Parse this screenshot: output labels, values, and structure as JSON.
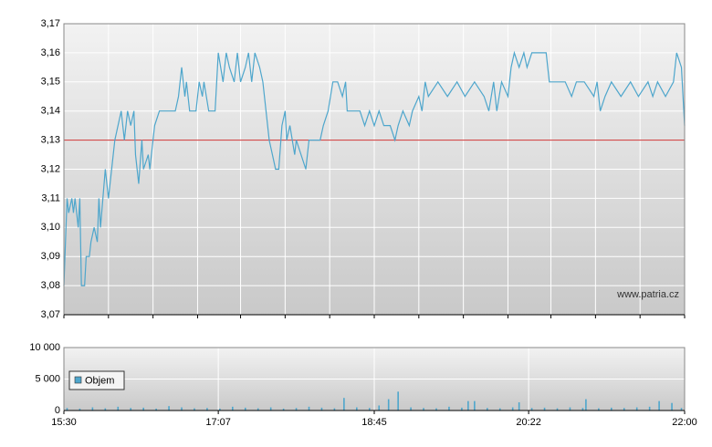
{
  "chart_data": [
    {
      "type": "line",
      "x": [
        930,
        932,
        933,
        935,
        936,
        937,
        939,
        940,
        941,
        943,
        944,
        946,
        947,
        949,
        951,
        952,
        953,
        956,
        958,
        960,
        962,
        964,
        966,
        967,
        968,
        970,
        972,
        974,
        975,
        977,
        979,
        980,
        983,
        984,
        986,
        987,
        990,
        993,
        997,
        1000,
        1002,
        1004,
        1006,
        1007,
        1009,
        1013,
        1015,
        1017,
        1018,
        1021,
        1025,
        1027,
        1030,
        1032,
        1034,
        1037,
        1039,
        1041,
        1044,
        1046,
        1048,
        1050,
        1053,
        1055,
        1057,
        1059,
        1061,
        1063,
        1065,
        1067,
        1069,
        1070,
        1072,
        1075,
        1076,
        1079,
        1082,
        1084,
        1088,
        1091,
        1093,
        1096,
        1099,
        1102,
        1105,
        1107,
        1108,
        1111,
        1116,
        1119,
        1122,
        1125,
        1128,
        1131,
        1135,
        1138,
        1140,
        1143,
        1147,
        1149,
        1153,
        1155,
        1157,
        1159,
        1165,
        1171,
        1177,
        1182,
        1188,
        1194,
        1197,
        1200,
        1202,
        1205,
        1209,
        1211,
        1213,
        1216,
        1219,
        1221,
        1224,
        1228,
        1233,
        1235,
        1240,
        1245,
        1249,
        1252,
        1257,
        1263,
        1265,
        1267,
        1270,
        1274,
        1280,
        1286,
        1291,
        1297,
        1300,
        1303,
        1308,
        1313,
        1315,
        1318,
        1320
      ],
      "series": [
        {
          "color": "#4ea6cc",
          "values": [
            3.08,
            3.11,
            3.105,
            3.11,
            3.105,
            3.11,
            3.1,
            3.11,
            3.08,
            3.08,
            3.09,
            3.09,
            3.095,
            3.1,
            3.095,
            3.11,
            3.1,
            3.12,
            3.11,
            3.12,
            3.13,
            3.135,
            3.14,
            3.135,
            3.13,
            3.14,
            3.135,
            3.14,
            3.125,
            3.115,
            3.13,
            3.12,
            3.125,
            3.12,
            3.13,
            3.135,
            3.14,
            3.14,
            3.14,
            3.14,
            3.145,
            3.155,
            3.145,
            3.15,
            3.14,
            3.14,
            3.15,
            3.145,
            3.15,
            3.14,
            3.14,
            3.16,
            3.15,
            3.16,
            3.155,
            3.15,
            3.16,
            3.15,
            3.155,
            3.16,
            3.15,
            3.16,
            3.155,
            3.15,
            3.14,
            3.13,
            3.125,
            3.12,
            3.12,
            3.135,
            3.14,
            3.13,
            3.135,
            3.125,
            3.13,
            3.125,
            3.12,
            3.13,
            3.13,
            3.13,
            3.135,
            3.14,
            3.15,
            3.15,
            3.145,
            3.15,
            3.14,
            3.14,
            3.14,
            3.135,
            3.14,
            3.135,
            3.14,
            3.135,
            3.135,
            3.13,
            3.135,
            3.14,
            3.135,
            3.14,
            3.145,
            3.14,
            3.15,
            3.145,
            3.15,
            3.145,
            3.15,
            3.145,
            3.15,
            3.145,
            3.14,
            3.15,
            3.14,
            3.15,
            3.145,
            3.155,
            3.16,
            3.155,
            3.16,
            3.155,
            3.16,
            3.16,
            3.16,
            3.15,
            3.15,
            3.15,
            3.145,
            3.15,
            3.15,
            3.145,
            3.15,
            3.14,
            3.145,
            3.15,
            3.145,
            3.15,
            3.145,
            3.15,
            3.145,
            3.15,
            3.145,
            3.15,
            3.16,
            3.155,
            3.135
          ]
        }
      ],
      "reference_line": {
        "value": 3.13,
        "color": "#cc3333"
      },
      "xlim": [
        930,
        1320
      ],
      "xgrid": [
        930,
        958,
        986,
        1014,
        1041,
        1069,
        1097,
        1125,
        1153,
        1181,
        1209,
        1236,
        1264,
        1292,
        1320
      ],
      "ylim": [
        3.07,
        3.17
      ],
      "yticks": [
        {
          "value": 3.07,
          "label": "3,07"
        },
        {
          "value": 3.08,
          "label": "3,08"
        },
        {
          "value": 3.09,
          "label": "3,09"
        },
        {
          "value": 3.1,
          "label": "3,10"
        },
        {
          "value": 3.11,
          "label": "3,11"
        },
        {
          "value": 3.12,
          "label": "3,12"
        },
        {
          "value": 3.13,
          "label": "3,13"
        },
        {
          "value": 3.14,
          "label": "3,14"
        },
        {
          "value": 3.15,
          "label": "3,15"
        },
        {
          "value": 3.16,
          "label": "3,16"
        },
        {
          "value": 3.17,
          "label": "3,17"
        }
      ],
      "grid": true,
      "watermark": "www.patria.cz"
    },
    {
      "type": "bar",
      "x": [
        932,
        940,
        948,
        956,
        964,
        972,
        980,
        988,
        996,
        1004,
        1012,
        1020,
        1028,
        1036,
        1044,
        1052,
        1060,
        1068,
        1076,
        1084,
        1092,
        1100,
        1106,
        1114,
        1122,
        1128,
        1134,
        1140,
        1148,
        1156,
        1164,
        1172,
        1180,
        1184,
        1188,
        1196,
        1204,
        1212,
        1216,
        1224,
        1232,
        1240,
        1248,
        1256,
        1258,
        1266,
        1274,
        1282,
        1290,
        1298,
        1304,
        1312,
        1318
      ],
      "series": [
        {
          "name": "Objem",
          "color": "#4ea6cc",
          "values": [
            400,
            300,
            500,
            350,
            600,
            400,
            450,
            300,
            700,
            500,
            350,
            400,
            300,
            600,
            450,
            350,
            500,
            300,
            400,
            600,
            450,
            350,
            2000,
            500,
            400,
            800,
            1800,
            3000,
            500,
            400,
            350,
            600,
            450,
            1500,
            1500,
            400,
            350,
            500,
            1300,
            400,
            450,
            350,
            500,
            400,
            1800,
            350,
            450,
            400,
            500,
            600,
            1500,
            1200,
            400
          ]
        }
      ],
      "xlim": [
        930,
        1320
      ],
      "xticks": [
        {
          "value": 930,
          "label": "15:30"
        },
        {
          "value": 1027,
          "label": "17:07"
        },
        {
          "value": 1125,
          "label": "18:45"
        },
        {
          "value": 1222,
          "label": "20:22"
        },
        {
          "value": 1320,
          "label": "22:00"
        }
      ],
      "ylim": [
        0,
        10000
      ],
      "yticks": [
        {
          "value": 0,
          "label": "0"
        },
        {
          "value": 5000,
          "label": "5 000"
        },
        {
          "value": 10000,
          "label": "10 000"
        }
      ],
      "grid": true,
      "legend": "upper-left"
    }
  ]
}
